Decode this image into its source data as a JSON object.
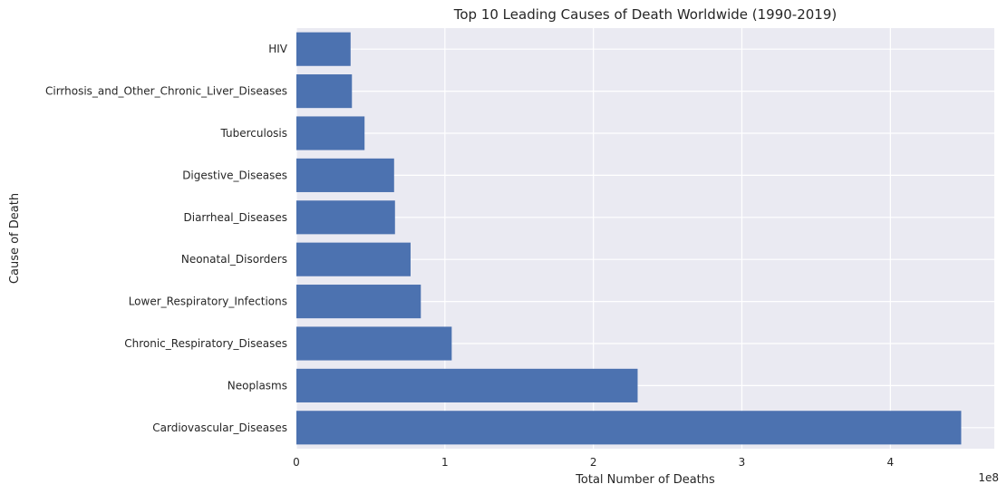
{
  "chart_data": {
    "type": "bar",
    "orientation": "horizontal",
    "title": "Top 10 Leading Causes of Death Worldwide (1990-2019)",
    "xlabel": "Total Number of Deaths",
    "ylabel": "Cause of Death",
    "x_scale_label": "1e8",
    "xlim": [
      0,
      470000000
    ],
    "x_ticks": [
      0,
      100000000,
      200000000,
      300000000,
      400000000
    ],
    "x_tick_labels": [
      "0",
      "1",
      "2",
      "3",
      "4"
    ],
    "grid": true,
    "bar_color": "#4C72B0",
    "background_color": "#EAEAF2",
    "categories": [
      "Cardiovascular_Diseases",
      "Neoplasms",
      "Chronic_Respiratory_Diseases",
      "Lower_Respiratory_Infections",
      "Neonatal_Disorders",
      "Diarrheal_Diseases",
      "Digestive_Diseases",
      "Tuberculosis",
      "Cirrhosis_and_Other_Chronic_Liver_Diseases",
      "HIV"
    ],
    "values": [
      447700000,
      229800000,
      104600000,
      83800000,
      76900000,
      66400000,
      65800000,
      45900000,
      37400000,
      36500000
    ]
  }
}
